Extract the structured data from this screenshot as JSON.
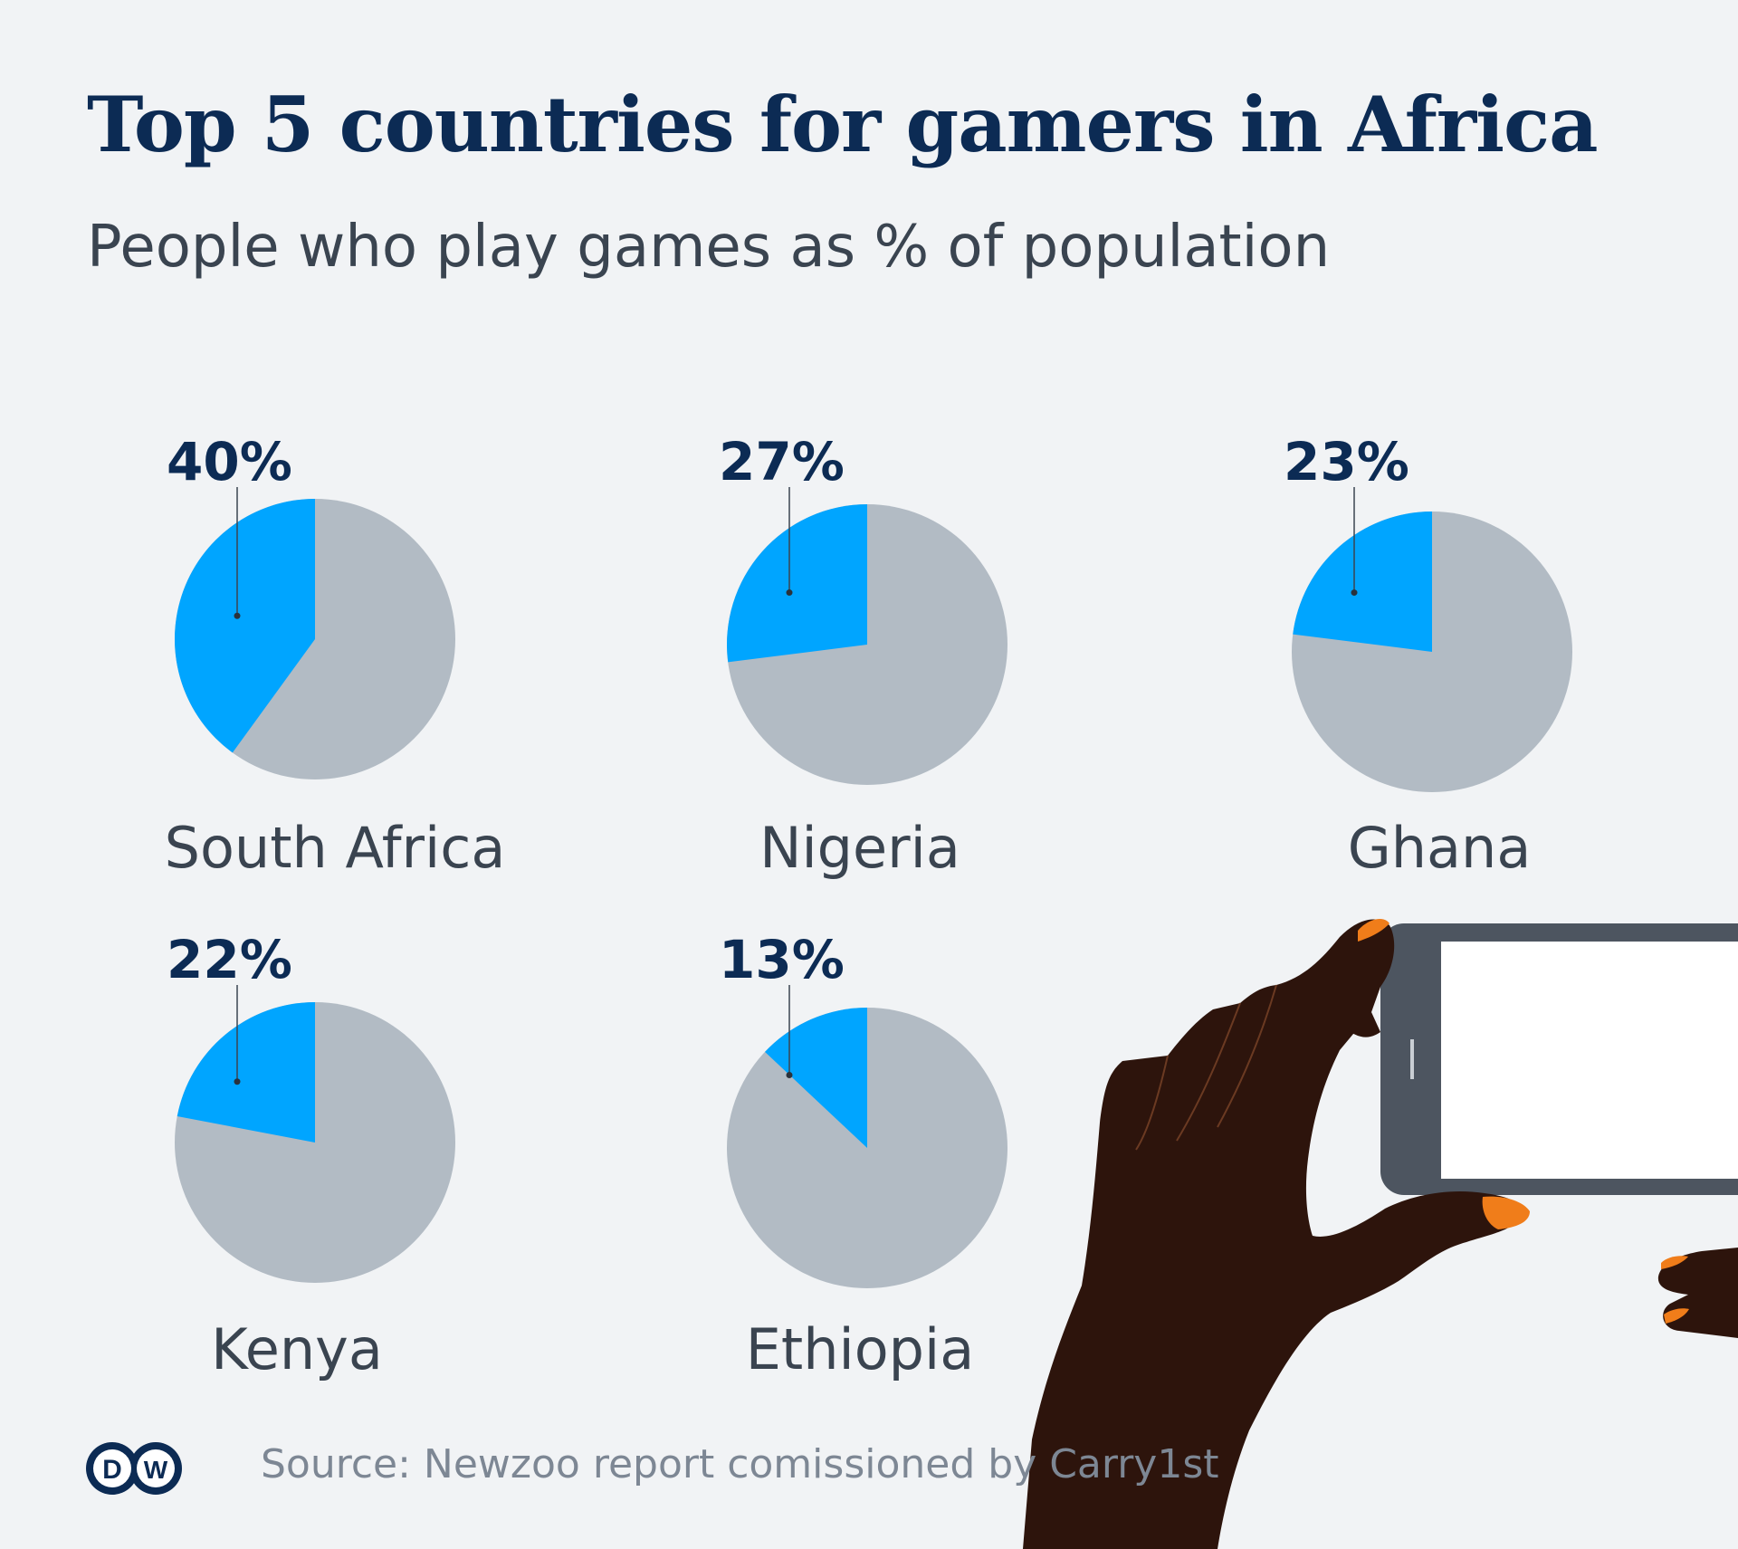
{
  "header": {
    "title": "Top 5 countries for gamers in Africa",
    "subtitle": "People who play games as % of population"
  },
  "footer": {
    "source": "Source: Newzoo report comissioned by Carry1st",
    "logo": "DW"
  },
  "colors": {
    "highlight": "#00a5ff",
    "remainder": "#b2bbc4",
    "title": "#0c2b54",
    "text": "#3a4450",
    "background": "#f1f3f5"
  },
  "chart_data": {
    "type": "pie",
    "title": "Top 5 countries for gamers in Africa",
    "subtitle": "People who play games as % of population",
    "unit": "%",
    "categories": [
      "South Africa",
      "Nigeria",
      "Ghana",
      "Kenya",
      "Ethiopia"
    ],
    "values": [
      40,
      27,
      23,
      22,
      13
    ],
    "labels": [
      "40%",
      "27%",
      "23%",
      "22%",
      "13%"
    ]
  }
}
